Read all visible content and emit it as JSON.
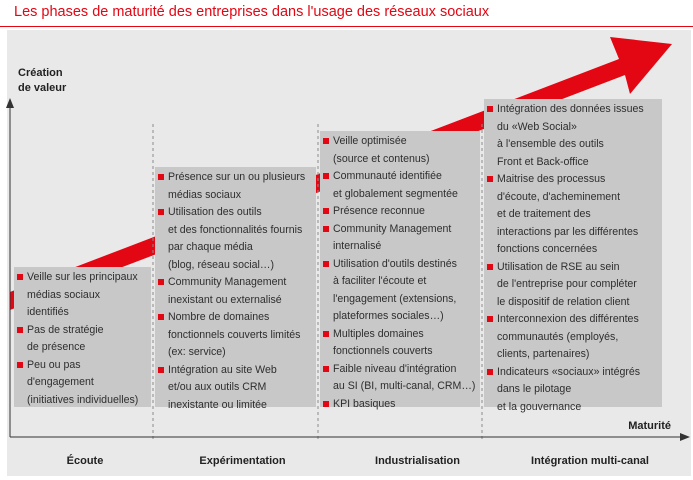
{
  "title": "Les phases de maturité des entreprises dans l'usage des réseaux sociaux",
  "y_axis": [
    "Création",
    "de valeur"
  ],
  "x_axis": "Maturité",
  "colors": {
    "accent": "#e30613",
    "panel": "#e9e9e9",
    "box": "#c8c8c8"
  },
  "phases": [
    {
      "name": "Écoute",
      "items": [
        [
          "Veille sur les principaux",
          "médias sociaux",
          "identifiés"
        ],
        [
          "Pas de stratégie",
          "de présence"
        ],
        [
          "Peu ou pas",
          "d'engagement",
          "(initiatives individuelles)"
        ]
      ]
    },
    {
      "name": "Expérimentation",
      "items": [
        [
          "Présence sur un ou plusieurs",
          "médias sociaux"
        ],
        [
          "Utilisation des outils",
          "et des fonctionnalités fournis",
          "par chaque média",
          "(blog, réseau social…)"
        ],
        [
          "Community Management",
          "inexistant ou externalisé"
        ],
        [
          "Nombre de domaines",
          "fonctionnels couverts limités",
          "(ex: service)"
        ],
        [
          "Intégration au site Web",
          "et/ou aux outils CRM",
          "inexistante ou limitée"
        ]
      ]
    },
    {
      "name": "Industrialisation",
      "items": [
        [
          "Veille optimisée",
          "(source et contenus)"
        ],
        [
          "Communauté identifiée",
          "et globalement segmentée"
        ],
        [
          "Présence reconnue"
        ],
        [
          "Community Management",
          "internalisé"
        ],
        [
          "Utilisation d'outils destinés",
          "à faciliter l'écoute et",
          "l'engagement (extensions,",
          "plateformes sociales…)"
        ],
        [
          "Multiples domaines",
          "fonctionnels couverts"
        ],
        [
          "Faible niveau d'intégration",
          "au SI (BI, multi-canal, CRM…)"
        ],
        [
          "KPI basiques"
        ]
      ]
    },
    {
      "name": "Intégration multi-canal",
      "items": [
        [
          "Intégration des données issues",
          "du «Web Social»",
          "à l'ensemble des outils",
          "Front et Back-office"
        ],
        [
          "Maitrise des processus",
          "d'écoute, d'acheminement",
          "et de traitement des",
          "interactions par les différentes",
          "fonctions concernées"
        ],
        [
          "Utilisation de RSE au sein",
          "de l'entreprise pour compléter",
          "le dispositif de relation client"
        ],
        [
          "Interconnexion des différentes",
          "communautés (employés,",
          "clients, partenaires)"
        ],
        [
          "Indicateurs «sociaux» intégrés",
          "dans le pilotage",
          "et la gouvernance"
        ]
      ]
    }
  ]
}
